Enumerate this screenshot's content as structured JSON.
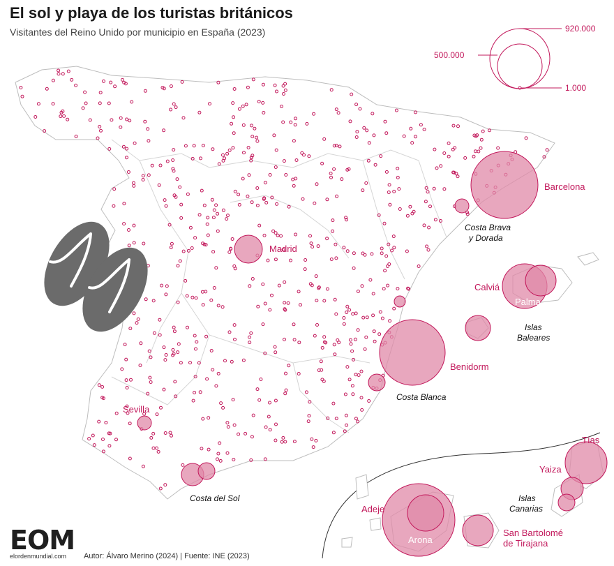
{
  "title": "El sol y playa de los turistas británicos",
  "subtitle": "Visitantes del Reino Unido por municipio en España (2023)",
  "colors": {
    "accent": "#c2185b",
    "bubble_fill": "#e08aa8",
    "border": "#cccccc",
    "land": "#ffffff"
  },
  "legend": {
    "max_label": "920.000",
    "mid_label": "500.000",
    "min_label": "1.000"
  },
  "city_labels": {
    "barcelona": "Barcelona",
    "madrid": "Madrid",
    "calvia": "Calviá",
    "palma": "Palma",
    "benidorm": "Benidorm",
    "sevilla": "Sevilla",
    "adeje": "Adeje",
    "arona": "Arona",
    "tias": "Tías",
    "yaiza": "Yaiza",
    "san_bartolome": "San Bartolomé",
    "tirajana": "de Tirajana"
  },
  "region_labels": {
    "costa_brava": "Costa Brava",
    "y_dorada": "y Dorada",
    "islas": "Islas",
    "baleares": "Baleares",
    "costa_blanca": "Costa Blanca",
    "costa_del_sol": "Costa del Sol",
    "canarias_1": "Islas",
    "canarias_2": "Canarias"
  },
  "icons": {
    "flip_flops": "flip-flops-icon"
  },
  "footer": {
    "logo": "EOM",
    "url": "elordenmundial.com",
    "credit": "Autor: Álvaro Merino (2024) | Fuente: INE (2023)"
  }
}
